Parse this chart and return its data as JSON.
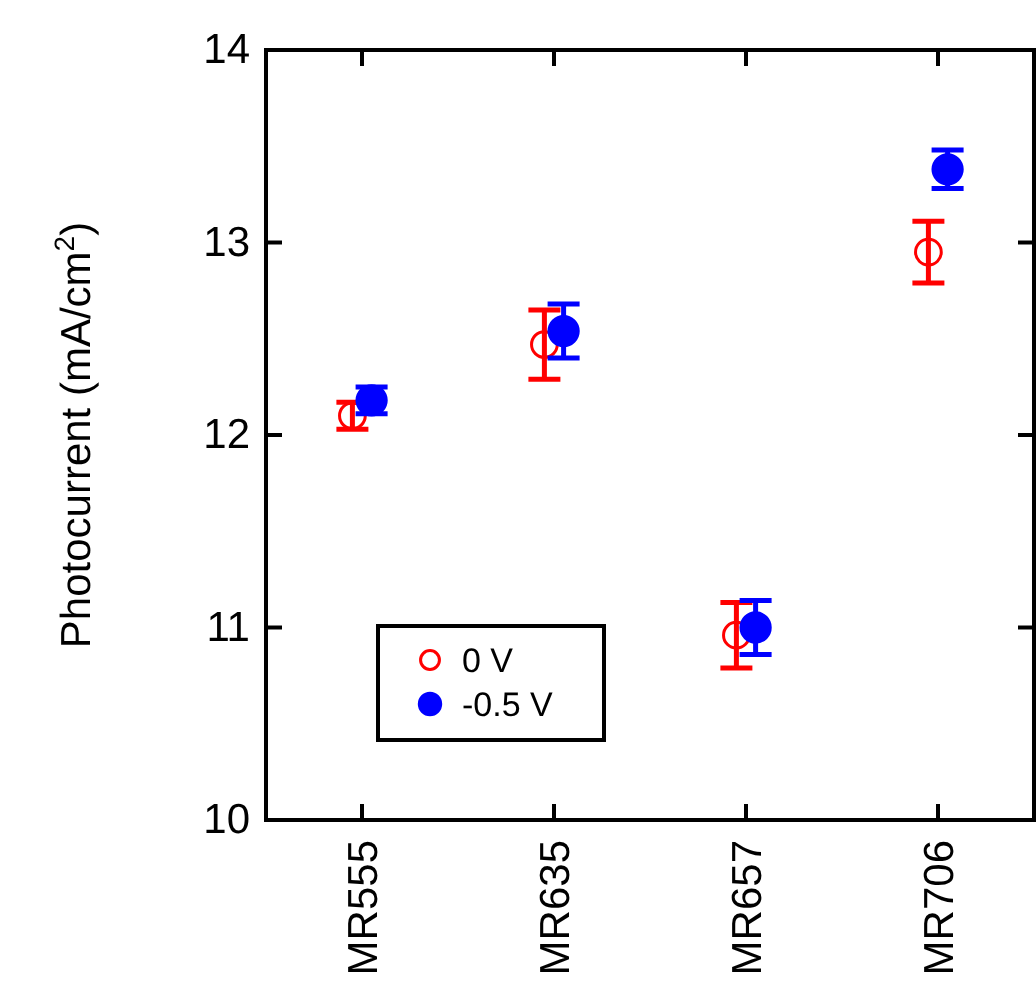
{
  "chart_data": {
    "type": "scatter",
    "ylabel": "Photocurrent (mA/cm$^{2}$)",
    "categories": [
      "MR555",
      "MR635",
      "MR657",
      "MR706"
    ],
    "ylim": [
      10,
      14
    ],
    "yticks": [
      10,
      11,
      12,
      13,
      14
    ],
    "grid": false,
    "legend": "bottom left",
    "marker": "circle",
    "series": [
      {
        "name": "0 V",
        "color": "#ff0000",
        "values": [
          12.1,
          12.47,
          10.96,
          12.95
        ],
        "errors": [
          0.07,
          0.18,
          0.17,
          0.16
        ]
      },
      {
        "name": "-0.5 V",
        "color": "#0000ff",
        "values": [
          12.18,
          12.54,
          11.0,
          13.38
        ],
        "errors": [
          0.07,
          0.14,
          0.14,
          0.1
        ]
      }
    ]
  }
}
